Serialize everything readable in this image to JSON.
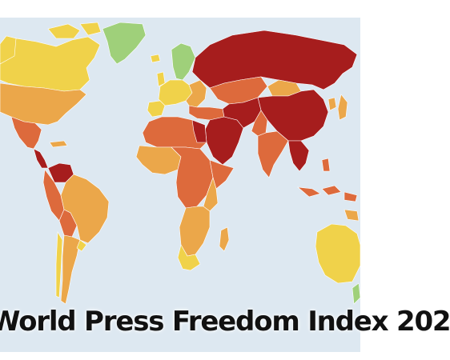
{
  "title": "World Press Freedom Index 202",
  "colors": {
    "ocean": "#dde8f1",
    "good": "#9fd07a",
    "satisfactory": "#f0d24a",
    "problematic": "#eba74a",
    "difficult": "#dd6a3c",
    "very_serious": "#a61d1d",
    "border": "#ffffff"
  }
}
